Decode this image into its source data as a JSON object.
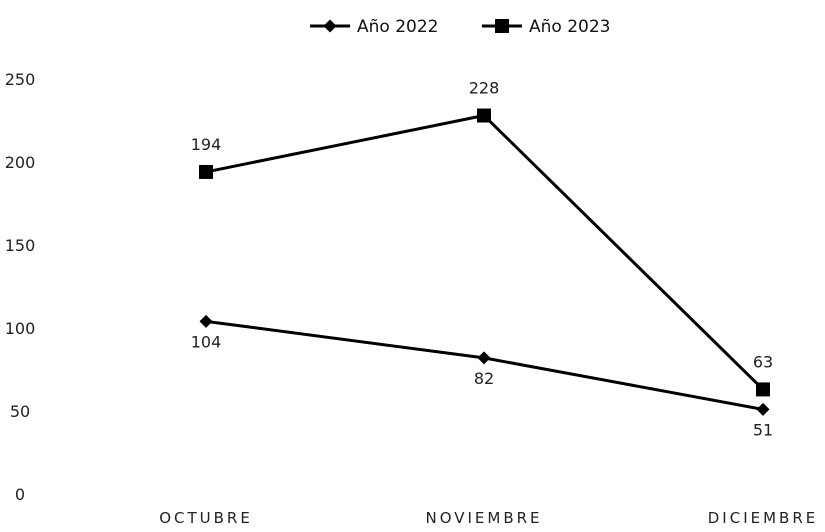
{
  "chart_data": {
    "type": "line",
    "categories": [
      "OCTUBRE",
      "NOVIEMBRE",
      "DICIEMBRE"
    ],
    "series": [
      {
        "name": "Año 2022",
        "values": [
          104,
          82,
          51
        ],
        "marker": "diamond",
        "color": "#000000"
      },
      {
        "name": "Año 2023",
        "values": [
          194,
          228,
          63
        ],
        "marker": "square",
        "color": "#000000"
      }
    ],
    "ylim": [
      0,
      250
    ],
    "yticks": [
      0,
      50,
      100,
      150,
      200,
      250
    ],
    "grid": false,
    "legend": "top-center",
    "title": "",
    "xlabel": "",
    "ylabel": ""
  }
}
